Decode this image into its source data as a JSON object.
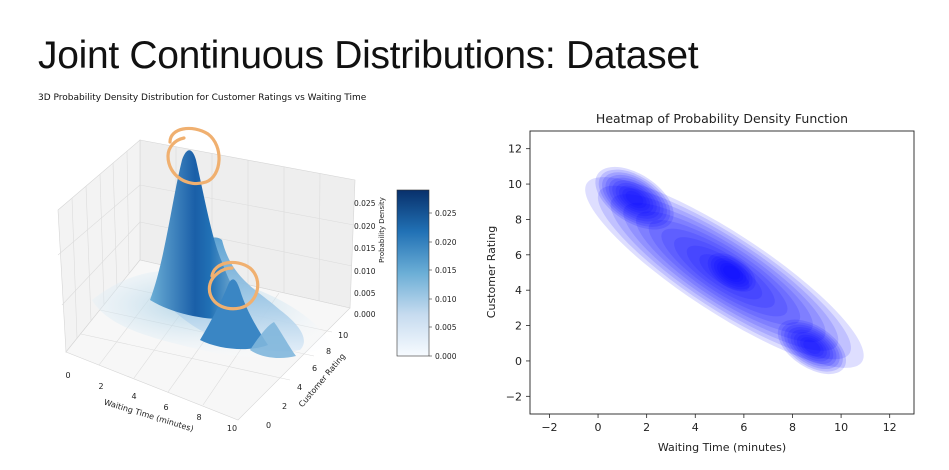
{
  "slide": {
    "title": "Joint Continuous Distributions: Dataset"
  },
  "chart_data": [
    {
      "type": "surface3d",
      "title": "3D Probability Density Distribution for Customer Ratings vs Waiting Time",
      "xlabel": "Waiting Time (minutes)",
      "ylabel": "Customer Rating",
      "zlabel": "Probability Density",
      "x_ticks": [
        0,
        2,
        4,
        6,
        8,
        10
      ],
      "y_ticks": [
        0,
        2,
        4,
        6,
        8,
        10
      ],
      "z_ticks": [
        "0.000",
        "0.005",
        "0.010",
        "0.015",
        "0.020",
        "0.025"
      ],
      "xlim": [
        0,
        10
      ],
      "ylim": [
        0,
        10
      ],
      "zlim": [
        0,
        0.028
      ],
      "peaks": [
        {
          "x": 1,
          "y": 9.5,
          "density": 0.028
        },
        {
          "x": 5,
          "y": 4.5,
          "density": 0.012
        },
        {
          "x": 8.5,
          "y": 0.8,
          "density": 0.008
        }
      ],
      "colorbar": {
        "ticks": [
          "0.000",
          "0.005",
          "0.010",
          "0.015",
          "0.020",
          "0.025"
        ],
        "range": [
          0,
          0.028
        ],
        "colormap": "Blues",
        "colors": [
          "#f7fbff",
          "#c6dbef",
          "#6baed6",
          "#2171b5",
          "#08306b"
        ]
      },
      "highlight_color": "#f0b070"
    },
    {
      "type": "heatmap",
      "title": "Heatmap of Probability Density Function",
      "xlabel": "Waiting Time (minutes)",
      "ylabel": "Customer Rating",
      "x_ticks": [
        -2,
        0,
        2,
        4,
        6,
        8,
        10,
        12
      ],
      "y_ticks": [
        -2,
        0,
        2,
        4,
        6,
        8,
        10,
        12
      ],
      "xlim": [
        -2.8,
        13
      ],
      "ylim": [
        -3,
        13
      ],
      "fill_color": "#0000ff",
      "levels": 10,
      "peaks": [
        {
          "x": 1.5,
          "y": 9.2,
          "density": 1.0
        },
        {
          "x": 5.5,
          "y": 5.0,
          "density": 0.55
        },
        {
          "x": 8.8,
          "y": 0.8,
          "density": 0.85
        }
      ]
    }
  ]
}
